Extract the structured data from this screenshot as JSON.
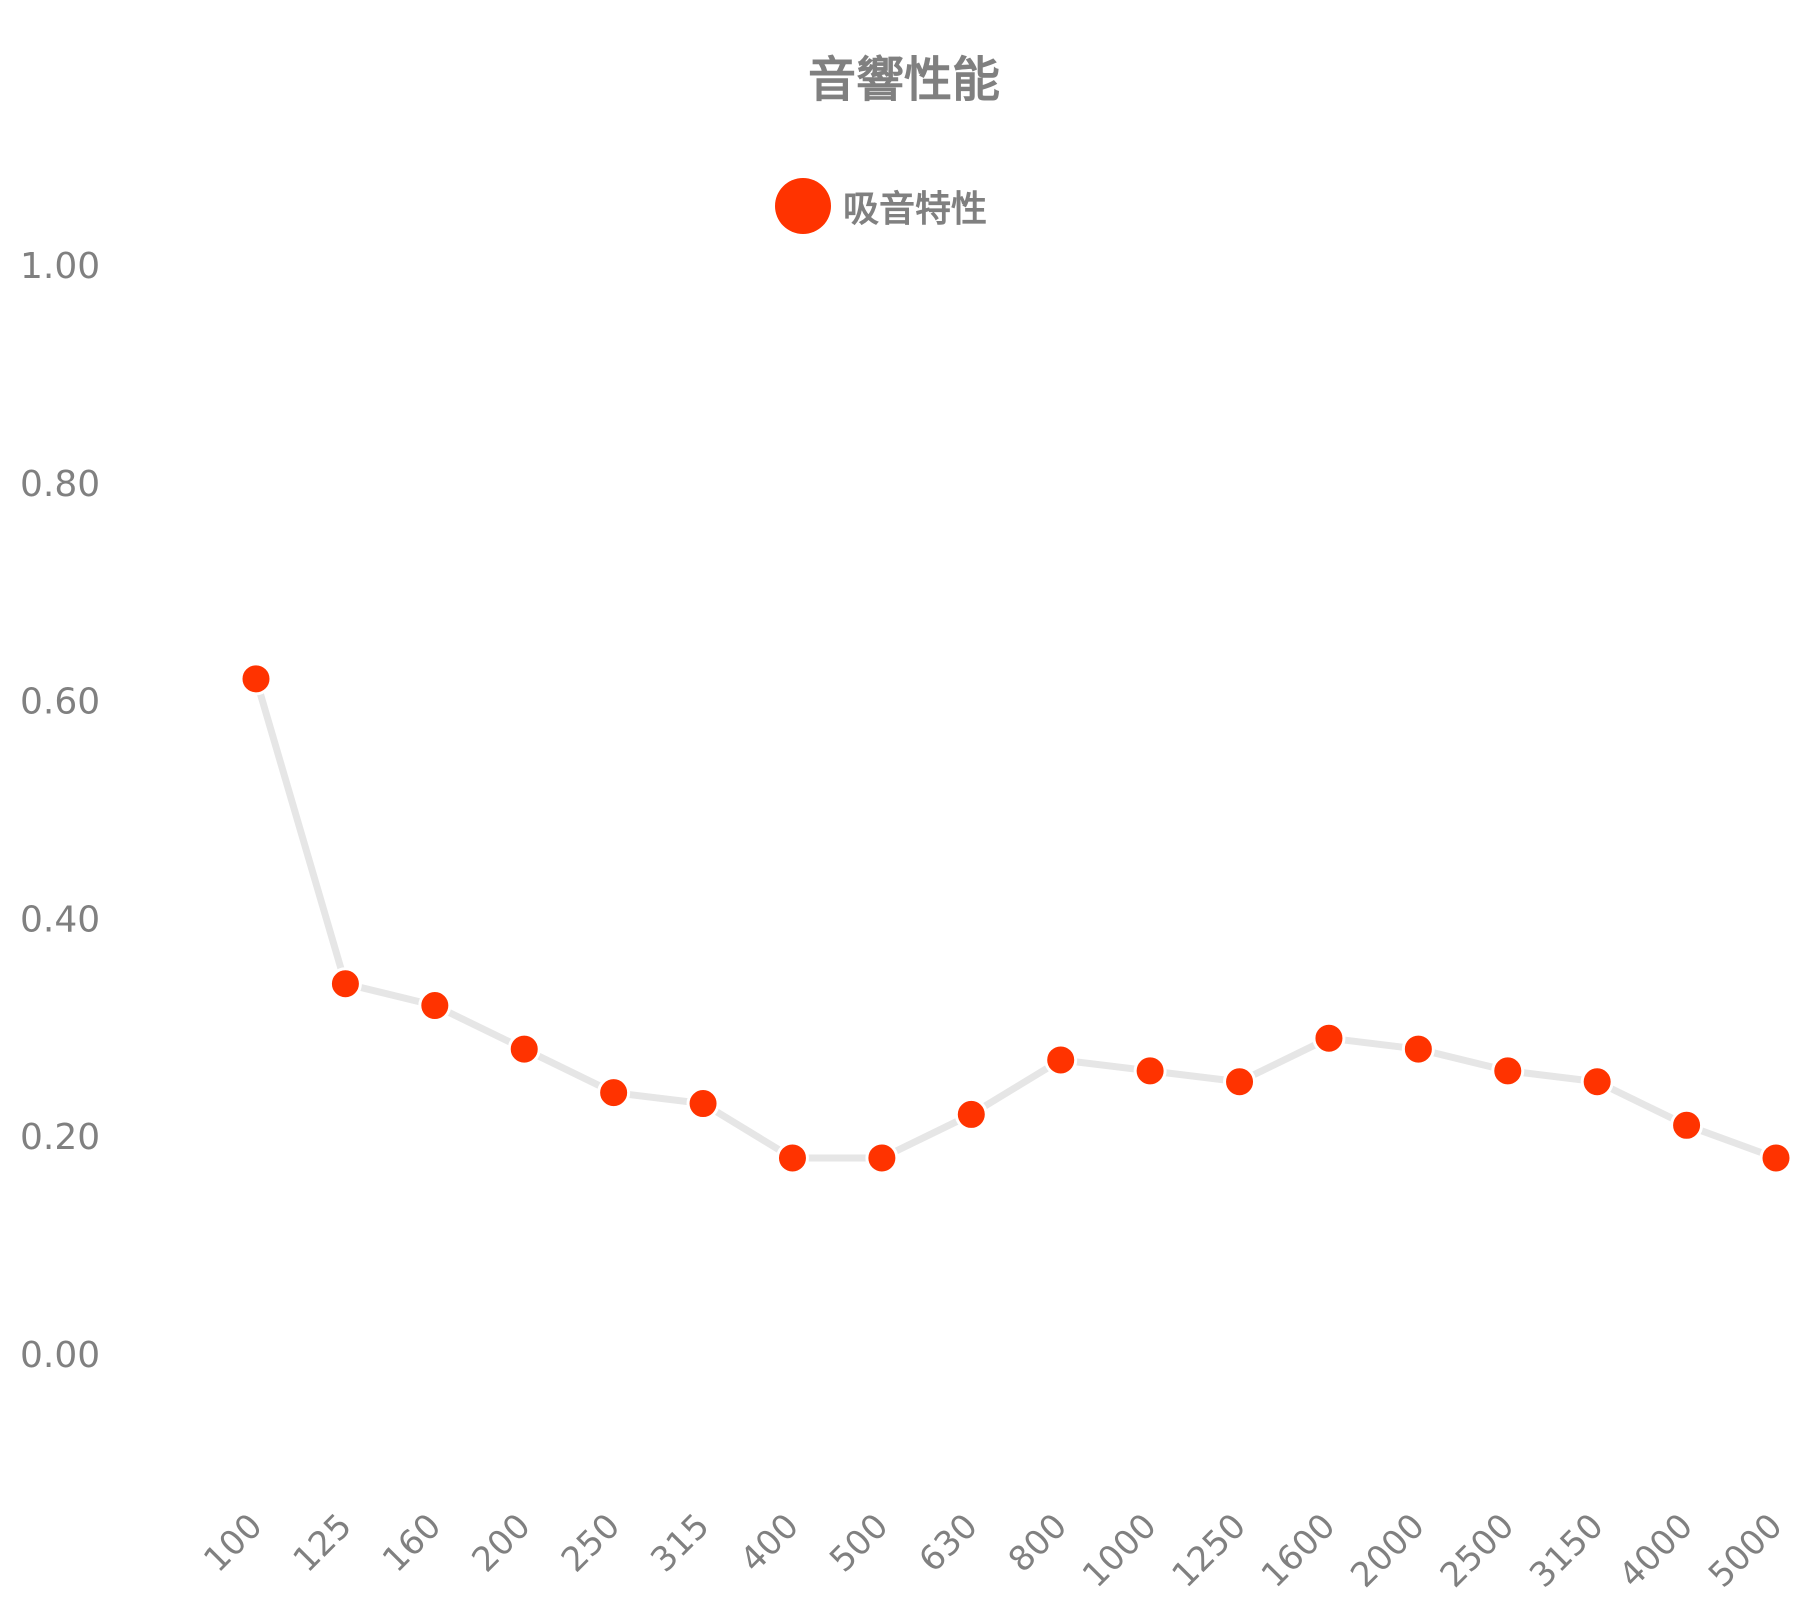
{
  "chart_data": {
    "type": "line",
    "title": "音響性能",
    "legend": {
      "position": "top-center"
    },
    "grid": false,
    "categories": [
      "100",
      "125",
      "160",
      "200",
      "250",
      "315",
      "400",
      "500",
      "630",
      "800",
      "1000",
      "1250",
      "1600",
      "2000",
      "2500",
      "3150",
      "4000",
      "5000"
    ],
    "series": [
      {
        "name": "吸音特性",
        "values": [
          0.62,
          0.34,
          0.32,
          0.28,
          0.24,
          0.23,
          0.18,
          0.18,
          0.22,
          0.27,
          0.26,
          0.25,
          0.29,
          0.28,
          0.26,
          0.25,
          0.21,
          0.18
        ]
      }
    ],
    "ylim": [
      -0.1,
      1.0
    ],
    "yticks": [
      "1.00",
      "0.80",
      "0.60",
      "0.40",
      "0.20",
      "0.00"
    ],
    "xlabel": "",
    "ylabel": "",
    "colors": {
      "line": "#e6e6e6",
      "marker": "#ff3300",
      "text": "#808080"
    }
  }
}
